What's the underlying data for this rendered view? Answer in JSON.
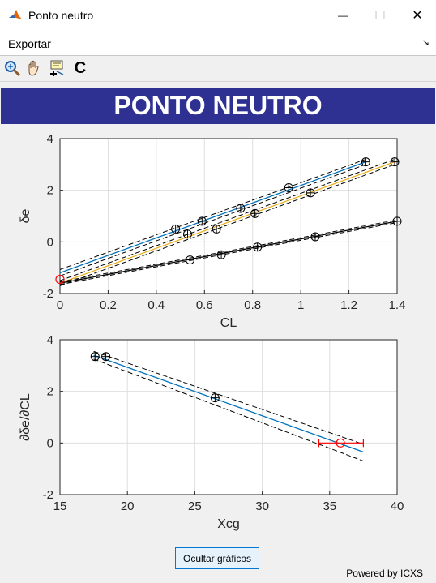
{
  "window": {
    "title": "Ponto neutro",
    "minimize_glyph": "—",
    "maximize_glyph": "☐",
    "close_glyph": "✕"
  },
  "menu": {
    "items": [
      "Exportar"
    ],
    "overflow_glyph": "↘"
  },
  "toolbar": {
    "tools": [
      "zoom-icon",
      "pan-hand-icon",
      "data-cursor-icon",
      "copy-c-icon"
    ],
    "copy_label": "C"
  },
  "header": {
    "title": "PONTO NEUTRO",
    "bg_color": "#2e3192"
  },
  "chart_data": [
    {
      "type": "line",
      "xlabel": "CL",
      "ylabel": "δe",
      "xlim": [
        0,
        1.4
      ],
      "ylim": [
        -2,
        4
      ],
      "xticks": [
        "0",
        "0.2",
        "0.4",
        "0.6",
        "0.8",
        "1",
        "1.2",
        "1.4"
      ],
      "yticks": [
        "-2",
        "0",
        "2",
        "4"
      ],
      "grid": true,
      "series": [
        {
          "color": "#0072bd",
          "x": [
            0.48,
            0.59,
            0.75,
            0.95,
            1.27
          ],
          "y": [
            0.5,
            0.8,
            1.3,
            2.1,
            3.1
          ],
          "fit": [
            [
              0,
              -1.2
            ],
            [
              1.27,
              3.1
            ]
          ],
          "band": [
            [
              [
                0,
                -1.07
              ],
              [
                1.27,
                3.2
              ]
            ],
            [
              [
                0,
                -1.32
              ],
              [
                1.27,
                3.0
              ]
            ]
          ]
        },
        {
          "color": "#edb120",
          "x": [
            0.53,
            0.65,
            0.81,
            1.04,
            1.39
          ],
          "y": [
            0.3,
            0.5,
            1.1,
            1.9,
            3.1
          ],
          "fit": [
            [
              0,
              -1.6
            ],
            [
              1.39,
              3.1
            ]
          ],
          "band": [
            [
              [
                0,
                -1.5
              ],
              [
                1.39,
                3.2
              ]
            ],
            [
              [
                0,
                -1.7
              ],
              [
                1.39,
                3.0
              ]
            ]
          ]
        },
        {
          "color": "#000000",
          "x": [
            0.54,
            0.67,
            0.82,
            1.06,
            1.4
          ],
          "y": [
            -0.7,
            -0.5,
            -0.2,
            0.2,
            0.8
          ],
          "fit": [
            [
              0,
              -1.6
            ],
            [
              1.4,
              0.8
            ]
          ],
          "band": [
            [
              [
                0,
                -1.55
              ],
              [
                1.4,
                0.85
              ]
            ],
            [
              [
                0,
                -1.65
              ],
              [
                1.4,
                0.75
              ]
            ]
          ]
        }
      ],
      "intercept_point": {
        "x": 0,
        "y": -1.45,
        "color": "#ff0000"
      }
    },
    {
      "type": "line",
      "xlabel": "Xcg",
      "ylabel": "∂δe/∂CL",
      "xlim": [
        15,
        40
      ],
      "ylim": [
        -2,
        4
      ],
      "xticks": [
        "15",
        "20",
        "25",
        "30",
        "35",
        "40"
      ],
      "yticks": [
        "-2",
        "0",
        "2",
        "4"
      ],
      "grid": true,
      "points": [
        {
          "x": 17.6,
          "y": 3.35
        },
        {
          "x": 18.4,
          "y": 3.35
        },
        {
          "x": 26.5,
          "y": 1.75
        }
      ],
      "fit": [
        [
          17.5,
          3.4
        ],
        [
          37.5,
          -0.35
        ]
      ],
      "band": [
        [
          [
            17.5,
            3.55
          ],
          [
            37.5,
            -0.05
          ]
        ],
        [
          [
            17.5,
            3.25
          ],
          [
            37.5,
            -0.7
          ]
        ]
      ],
      "neutral_point": {
        "x": 35.8,
        "y": 0,
        "xerr": [
          34.2,
          37.5
        ],
        "color": "#ff0000"
      },
      "fit_color": "#0072bd"
    }
  ],
  "buttons": {
    "hide_graphs": "Ocultar gráficos"
  },
  "footer": {
    "powered_by": "Powered by ICXS"
  }
}
